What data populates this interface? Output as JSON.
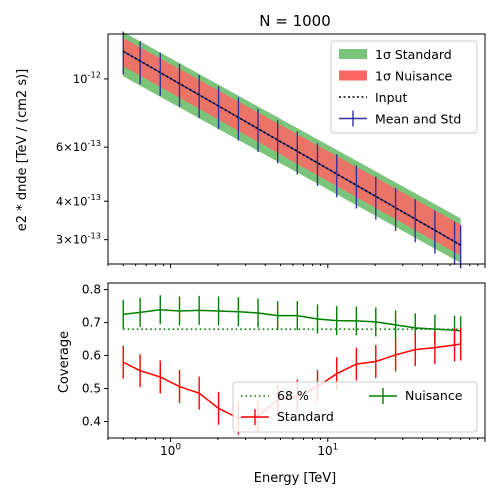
{
  "chart_data": [
    {
      "type": "area",
      "title": "N = 1000",
      "xlabel": "",
      "ylabel": "e2 * dnde [TeV / (cm2 s)]",
      "xscale": "log",
      "yscale": "log",
      "xlim": [
        0.4,
        100
      ],
      "ylim": [
        2.5e-13,
        1.4e-12
      ],
      "ytick_labels": [
        "10^{-12}",
        "6×10^{-13}",
        "4×10^{-13}",
        "3×10^{-13}"
      ],
      "ytick_values": [
        1e-12,
        6e-13,
        4e-13,
        3e-13
      ],
      "grid": false,
      "legend_placement": "upper right",
      "legend": [
        "1σ Standard",
        "1σ Nuisance",
        "Input",
        "Mean and Std"
      ],
      "x": [
        0.5,
        0.64,
        0.86,
        1.14,
        1.52,
        2.02,
        2.7,
        3.6,
        4.8,
        6.4,
        8.6,
        11.4,
        15.2,
        20.2,
        27,
        36,
        48,
        64,
        70
      ],
      "band_standard": {
        "at_x": [
          0.5,
          70
        ],
        "lower": [
          1.02e-12,
          2.52e-13
        ],
        "upper": [
          1.42e-12,
          3.52e-13
        ]
      },
      "band_nuisance": {
        "at_x": [
          0.5,
          70
        ],
        "lower": [
          1.1e-12,
          2.66e-13
        ],
        "upper": [
          1.36e-12,
          3.36e-13
        ]
      },
      "input_line": {
        "at_x": [
          0.5,
          70
        ],
        "y": [
          1.23e-12,
          2.88e-13
        ]
      },
      "mean_and_std": {
        "x": [
          0.5,
          0.64,
          0.86,
          1.14,
          1.52,
          2.02,
          2.7,
          3.6,
          4.8,
          6.4,
          8.6,
          11.4,
          15.2,
          20.2,
          27,
          36,
          48,
          64,
          70
        ],
        "std_frac": 0.16
      },
      "colors": {
        "standard": "#7bc47b",
        "nuisance": "#ff6666",
        "input": "#000000",
        "mean": "#33339e"
      }
    },
    {
      "type": "line",
      "title": "",
      "xlabel": "Energy [TeV]",
      "ylabel": "Coverage",
      "xscale": "log",
      "xlim": [
        0.4,
        100
      ],
      "ylim": [
        0.35,
        0.82
      ],
      "xtick_labels": [
        "10^{0}",
        "10^{1}"
      ],
      "xtick_values": [
        1,
        10
      ],
      "ytick_labels": [
        "0.4",
        "0.5",
        "0.6",
        "0.7",
        "0.8"
      ],
      "ytick_values": [
        0.4,
        0.5,
        0.6,
        0.7,
        0.8
      ],
      "grid": false,
      "legend_placement": "lower right",
      "legend": [
        "68 %",
        "Standard",
        "Nuisance"
      ],
      "x": [
        0.5,
        0.64,
        0.86,
        1.14,
        1.52,
        2.02,
        2.7,
        3.6,
        4.8,
        6.4,
        8.6,
        11.4,
        15.2,
        20.2,
        27,
        36,
        48,
        64,
        70
      ],
      "reference_68": 0.68,
      "series": [
        {
          "name": "Nuisance",
          "color": "#008000",
          "values": [
            0.725,
            0.731,
            0.739,
            0.735,
            0.737,
            0.735,
            0.733,
            0.729,
            0.721,
            0.721,
            0.711,
            0.706,
            0.705,
            0.702,
            0.693,
            0.684,
            0.68,
            0.677,
            0.675
          ],
          "error": 0.044
        },
        {
          "name": "Standard",
          "color": "#ff0000",
          "values": [
            0.58,
            0.554,
            0.535,
            0.506,
            0.486,
            0.44,
            0.41,
            0.417,
            0.465,
            0.477,
            0.506,
            0.545,
            0.574,
            0.582,
            0.602,
            0.618,
            0.624,
            0.632,
            0.635
          ],
          "error": 0.05
        }
      ],
      "colors": {
        "reference": "#008000"
      }
    }
  ]
}
